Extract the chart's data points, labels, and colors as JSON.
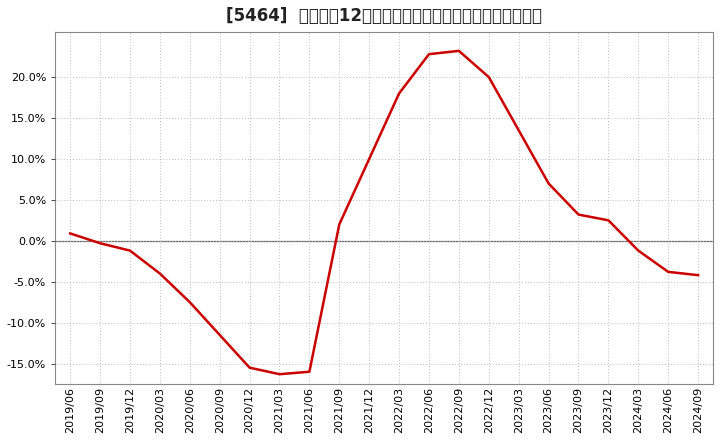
{
  "title": "[5464]  売上高の12か月移動合計の対前年同期増減率の推移",
  "line_color": "#cc0000",
  "background_color": "#ffffff",
  "plot_bg_color": "#ffffff",
  "grid_color": "#bbbbbb",
  "zero_line_color": "#666666",
  "dates": [
    "2019/06",
    "2019/09",
    "2019/12",
    "2020/03",
    "2020/06",
    "2020/09",
    "2020/12",
    "2021/03",
    "2021/06",
    "2021/09",
    "2021/12",
    "2022/03",
    "2022/06",
    "2022/09",
    "2022/12",
    "2023/03",
    "2023/06",
    "2023/09",
    "2023/12",
    "2024/03",
    "2024/06",
    "2024/09"
  ],
  "values": [
    0.9,
    -0.3,
    -1.2,
    -4.0,
    -7.5,
    -11.5,
    -15.5,
    -16.3,
    -16.0,
    2.0,
    10.0,
    18.0,
    22.8,
    23.2,
    20.0,
    13.5,
    7.0,
    3.2,
    2.5,
    -1.2,
    -3.8,
    -4.2
  ],
  "ylim": [
    -17.5,
    25.5
  ],
  "yticks": [
    -15.0,
    -10.0,
    -5.0,
    0.0,
    5.0,
    10.0,
    15.0,
    20.0
  ],
  "title_fontsize": 12,
  "tick_fontsize": 8,
  "line_width": 1.8
}
